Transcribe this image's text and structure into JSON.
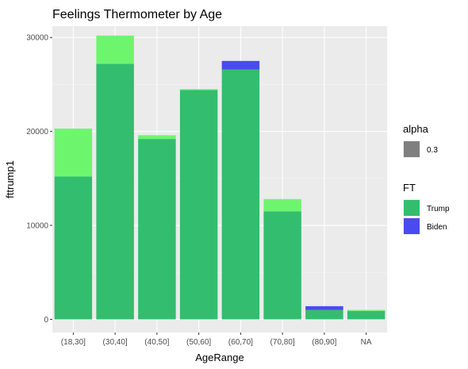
{
  "chart_data": {
    "type": "bar",
    "title": "Feelings Thermometer by Age",
    "xlabel": "AgeRange",
    "ylabel": "fttrump1",
    "categories": [
      "(18,30]",
      "(30,40]",
      "(40,50]",
      "(50,60]",
      "(60,70]",
      "(70,80]",
      "(80,90]",
      "NA"
    ],
    "series": [
      {
        "name": "Trump",
        "values": [
          20300,
          30200,
          19600,
          24500,
          26600,
          12800,
          1000,
          1000
        ]
      },
      {
        "name": "Biden",
        "values": [
          15200,
          27200,
          19200,
          24400,
          27500,
          11500,
          1400,
          900
        ]
      }
    ],
    "ylim": [
      -1400,
      31200
    ],
    "yticks": [
      0,
      10000,
      20000,
      30000
    ],
    "ytick_labels": [
      "0",
      "10000",
      "20000",
      "30000"
    ],
    "grid": true,
    "legend_position": "right",
    "legends": [
      {
        "title": "alpha",
        "items": [
          {
            "label": "0.3",
            "color": "#7f7f7f"
          }
        ]
      },
      {
        "title": "FT",
        "items": [
          {
            "label": "Trump",
            "color": "#33bd6f"
          },
          {
            "label": "Biden",
            "color": "#4a4af0"
          }
        ]
      }
    ],
    "colors": {
      "trump_only": "#6ef56e",
      "overlap": "#33bd6f",
      "biden_only": "#4a4af0",
      "panel": "#ebebeb",
      "grid_major": "#ffffff",
      "grid_minor": "#f5f5f5"
    }
  }
}
